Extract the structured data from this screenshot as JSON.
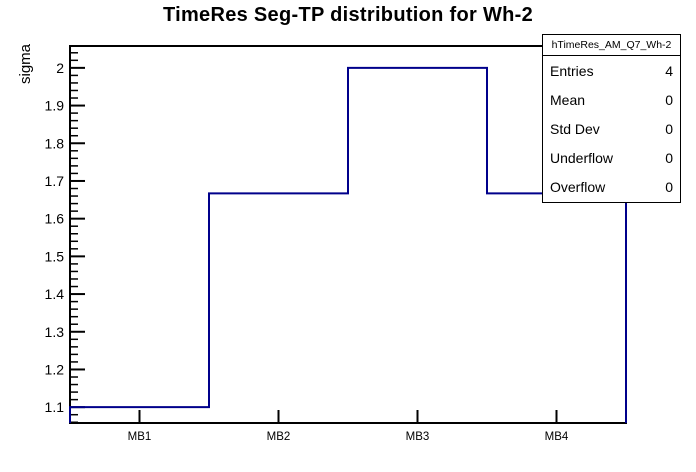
{
  "title": "TimeRes Seg-TP distribution for Wh-2",
  "stats_box": {
    "name": "hTimeRes_AM_Q7_Wh-2",
    "rows": [
      {
        "label": "Entries",
        "value": "4"
      },
      {
        "label": "Mean",
        "value": "0"
      },
      {
        "label": "Std Dev",
        "value": "0"
      },
      {
        "label": "Underflow",
        "value": "0"
      },
      {
        "label": "Overflow",
        "value": "0"
      }
    ]
  },
  "chart_data": {
    "type": "line",
    "subtype": "step-histogram (ROOT TH1 outline)",
    "title": "TimeRes Seg-TP distribution for Wh-2",
    "categories": [
      "MB1",
      "MB2",
      "MB3",
      "MB4"
    ],
    "values": [
      1.1,
      1.667,
      2.0,
      1.667
    ],
    "xlabel": "",
    "ylabel": "sigma",
    "ylim": [
      1.058,
      2.058
    ],
    "y_ticks": [
      {
        "value": 1.1,
        "label": "1.1"
      },
      {
        "value": 1.2,
        "label": "1.2"
      },
      {
        "value": 1.3,
        "label": "1.3"
      },
      {
        "value": 1.4,
        "label": "1.4"
      },
      {
        "value": 1.5,
        "label": "1.5"
      },
      {
        "value": 1.6,
        "label": "1.6"
      },
      {
        "value": 1.7,
        "label": "1.7"
      },
      {
        "value": 1.8,
        "label": "1.8"
      },
      {
        "value": 1.9,
        "label": "1.9"
      },
      {
        "value": 2.0,
        "label": "2"
      }
    ],
    "y_minor_step": 0.02,
    "grid": false,
    "legend": false,
    "line_color": "#00008b",
    "frame_color": "#000000",
    "background_color": "#ffffff"
  }
}
